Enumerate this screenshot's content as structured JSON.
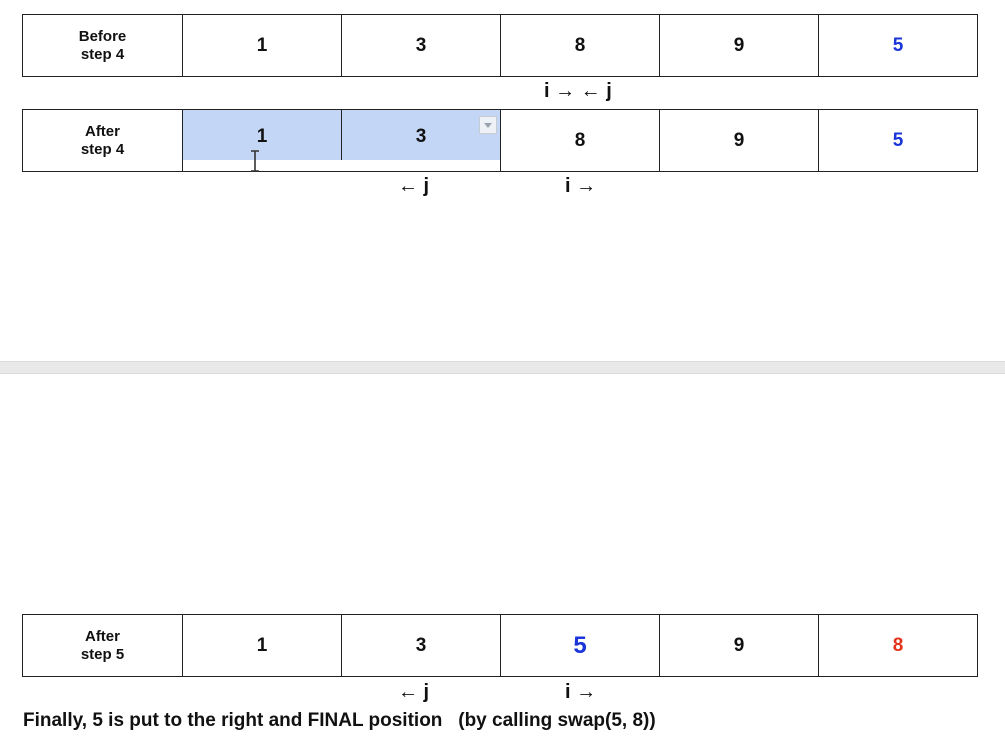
{
  "colors": {
    "pivot": "#1a35d8",
    "swapped": "#e2341d",
    "selection": "#c4d6f5"
  },
  "before_step4": {
    "label_line1": "Before",
    "label_line2": "step  4",
    "cells": [
      "1",
      "3",
      "8",
      "9",
      "5"
    ],
    "pointers": "i → ← j"
  },
  "after_step4": {
    "label_line1": "After",
    "label_line2": "step 4",
    "cells": [
      "1",
      "3",
      "8",
      "9",
      "5"
    ],
    "pointer_j": "← j",
    "pointer_i": "i →"
  },
  "after_step5": {
    "label_line1": "After",
    "label_line2": "step 5",
    "cells": [
      "1",
      "3",
      "5",
      "9",
      "8"
    ],
    "pointer_j": "← j",
    "pointer_i": "i →"
  },
  "caption": "Finally, 5 is put to the right and FINAL position   (by calling swap(5, 8))"
}
